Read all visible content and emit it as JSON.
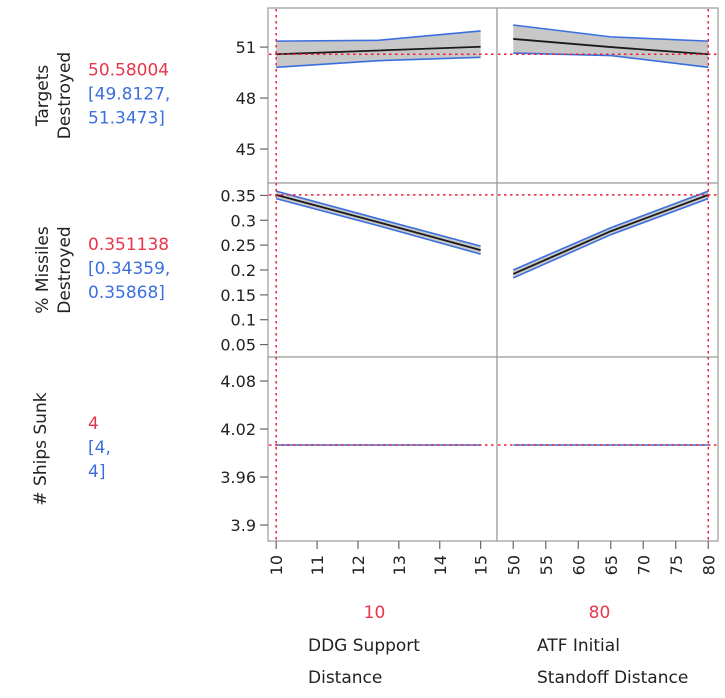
{
  "colors": {
    "prediction": "#e8364a",
    "interval": "#3b6fe0",
    "ci_fill": "#bdbdbd",
    "curve": "#1a1a1a",
    "frame": "#9a9a9a",
    "crosshair": "#e8203a"
  },
  "chart_data": {
    "type": "line",
    "title": "",
    "factors": [
      {
        "label_lines": [
          "DDG Support",
          "Distance"
        ],
        "current": "10",
        "current_value": 10,
        "xlim": [
          9.8,
          15.4
        ],
        "ticks": [
          "10",
          "11",
          "12",
          "13",
          "14",
          "15"
        ],
        "tick_values": [
          10,
          11,
          12,
          13,
          14,
          15
        ]
      },
      {
        "label_lines": [
          "ATF Initial",
          "Standoff Distance"
        ],
        "current": "80",
        "current_value": 80,
        "xlim": [
          47.5,
          81.5
        ],
        "ticks": [
          "50",
          "55",
          "60",
          "65",
          "70",
          "75",
          "80"
        ],
        "tick_values": [
          50,
          55,
          60,
          65,
          70,
          75,
          80
        ]
      }
    ],
    "responses": [
      {
        "label_lines": [
          "Targets",
          "Destroyed"
        ],
        "prediction": "50.58004",
        "interval_lines": [
          "[49.8127,",
          "51.3473]"
        ],
        "current_value": 50.58,
        "ylim": [
          43.0,
          53.3
        ],
        "ticks": [
          "51",
          "48",
          "45"
        ],
        "tick_values": [
          51,
          48,
          45
        ],
        "profiles": [
          {
            "x": [
              10,
              12.5,
              15
            ],
            "y": [
              50.58,
              50.8,
              51.02
            ],
            "lower": [
              49.81,
              50.2,
              50.4
            ],
            "upper": [
              51.35,
              51.4,
              51.95
            ]
          },
          {
            "x": [
              50,
              65,
              80
            ],
            "y": [
              51.48,
              51.0,
              50.58
            ],
            "lower": [
              50.65,
              50.5,
              49.81
            ],
            "upper": [
              52.3,
              51.6,
              51.35
            ]
          }
        ]
      },
      {
        "label_lines": [
          "% Missiles",
          "Destroyed"
        ],
        "prediction": "0.351138",
        "interval_lines": [
          "[0.34359,",
          "0.35868]"
        ],
        "current_value": 0.351,
        "ylim": [
          0.025,
          0.375
        ],
        "ticks": [
          "0.35",
          "0.3",
          "0.25",
          "0.2",
          "0.15",
          "0.1",
          "0.05"
        ],
        "tick_values": [
          0.35,
          0.3,
          0.25,
          0.2,
          0.15,
          0.1,
          0.05
        ],
        "profiles": [
          {
            "x": [
              10,
              12.5,
              15
            ],
            "y": [
              0.351,
              0.296,
              0.24
            ],
            "lower": [
              0.3436,
              0.289,
              0.232
            ],
            "upper": [
              0.3587,
              0.303,
              0.248
            ]
          },
          {
            "x": [
              50,
              65,
              80
            ],
            "y": [
              0.192,
              0.278,
              0.351
            ],
            "lower": [
              0.184,
              0.271,
              0.3436
            ],
            "upper": [
              0.2,
              0.285,
              0.3587
            ]
          }
        ]
      },
      {
        "label_lines": [
          "# Ships Sunk"
        ],
        "prediction": "4",
        "interval_lines": [
          "[4,",
          "4]"
        ],
        "current_value": 4,
        "ylim": [
          3.88,
          4.11
        ],
        "ticks": [
          "4.08",
          "4.02",
          "3.96",
          "3.9"
        ],
        "tick_values": [
          4.08,
          4.02,
          3.96,
          3.9
        ],
        "profiles": [
          {
            "x": [
              10,
              15
            ],
            "y": [
              4,
              4
            ],
            "lower": [
              4,
              4
            ],
            "upper": [
              4,
              4
            ]
          },
          {
            "x": [
              50,
              80
            ],
            "y": [
              4,
              4
            ],
            "lower": [
              4,
              4
            ],
            "upper": [
              4,
              4
            ]
          }
        ]
      }
    ]
  }
}
